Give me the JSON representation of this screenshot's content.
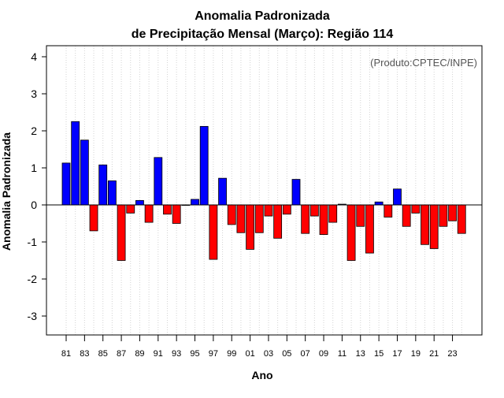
{
  "chart_data": {
    "type": "bar",
    "title": "Anomalia Padronizada",
    "subtitle": "de Precipitação Mensal (Março): Região 114",
    "annotation": "(Produto:CPTEC/INPE)",
    "xlabel": "Ano",
    "ylabel": "Anomalia Padronizada",
    "ylim": [
      -3.5,
      4.3
    ],
    "yticks": [
      -3,
      -2,
      -1,
      0,
      1,
      2,
      3,
      4
    ],
    "grid": true,
    "positive_color": "#0000ff",
    "negative_color": "#ff0000",
    "categories": [
      "81",
      "82",
      "83",
      "84",
      "85",
      "86",
      "87",
      "88",
      "89",
      "90",
      "91",
      "92",
      "93",
      "94",
      "95",
      "96",
      "97",
      "98",
      "99",
      "00",
      "01",
      "02",
      "03",
      "04",
      "05",
      "06",
      "07",
      "08",
      "09",
      "10",
      "11",
      "12",
      "13",
      "14",
      "15",
      "16",
      "17",
      "18",
      "19",
      "20",
      "21",
      "22",
      "23",
      "24"
    ],
    "tick_labels": [
      "81",
      "83",
      "85",
      "87",
      "89",
      "91",
      "93",
      "95",
      "97",
      "99",
      "01",
      "03",
      "05",
      "07",
      "09",
      "11",
      "13",
      "15",
      "17",
      "19",
      "21",
      "23"
    ],
    "values": [
      1.13,
      2.25,
      1.75,
      -0.7,
      1.08,
      0.65,
      -1.5,
      -0.22,
      0.12,
      -0.47,
      1.28,
      -0.25,
      -0.5,
      0.0,
      0.15,
      2.12,
      -1.47,
      0.72,
      -0.53,
      -0.75,
      -1.2,
      -0.75,
      -0.3,
      -0.9,
      -0.25,
      0.69,
      -0.77,
      -0.3,
      -0.8,
      -0.47,
      0.02,
      -1.5,
      -0.58,
      -1.3,
      0.08,
      -0.33,
      0.43,
      -0.58,
      -0.22,
      -1.07,
      -1.18,
      -0.58,
      -0.43,
      -0.77
    ]
  }
}
